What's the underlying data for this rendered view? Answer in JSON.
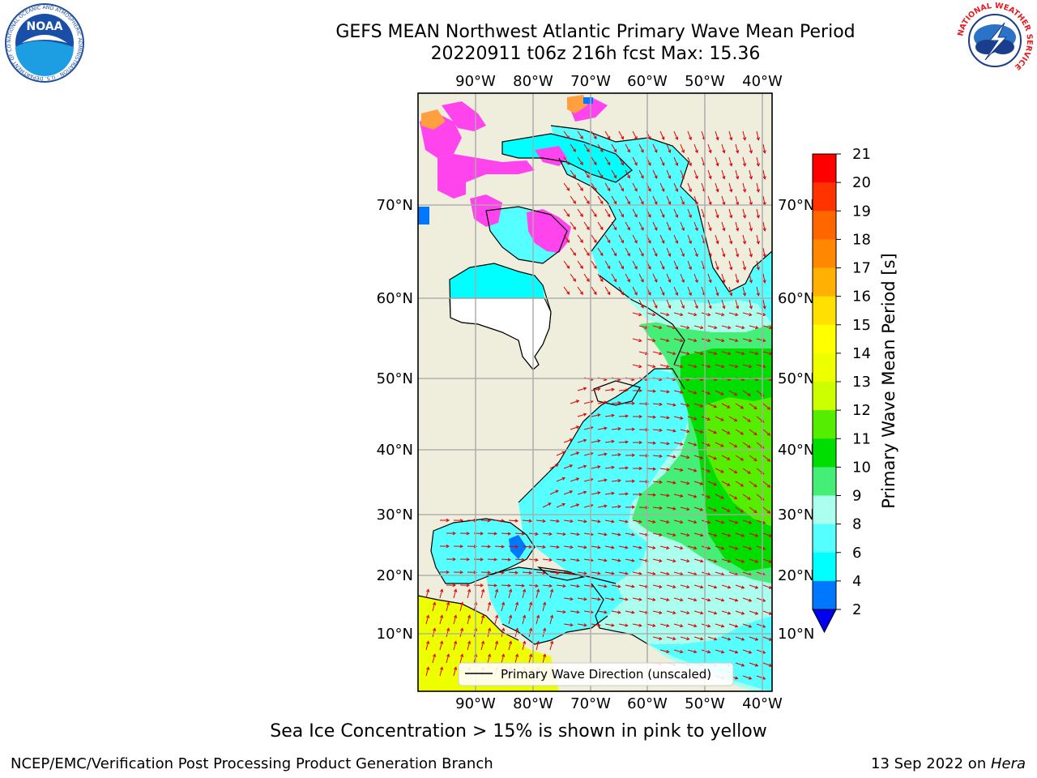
{
  "header": {
    "title_line1": "GEFS MEAN Northwest Atlantic Primary Wave Mean Period",
    "title_line2": "20220911 t06z 216h fcst   Max: 15.36"
  },
  "logos": {
    "noara_text": "NOAA",
    "noaa_ring": "NATIONAL OCEANIC AND ATMOSPHERIC ADMINISTRATION · U.S. DEPARTMENT OF COMMERCE",
    "nws_ring": "NATIONAL WEATHER SERVICE"
  },
  "map": {
    "lon_labels": [
      "90°W",
      "80°W",
      "70°W",
      "60°W",
      "50°W",
      "40°W"
    ],
    "lat_labels": [
      "70°N",
      "60°N",
      "50°N",
      "40°N",
      "30°N",
      "20°N",
      "10°N"
    ],
    "legend_label": "Primary Wave Direction (unscaled)",
    "colors": {
      "land": "#efeddc",
      "ice_pink": "#ff44ee",
      "ice_orange": "#ffa040",
      "arrows": "#e00000"
    }
  },
  "colorbar": {
    "label": "Primary Wave Mean Period [s]",
    "ticks": [
      "21",
      "20",
      "19",
      "18",
      "17",
      "16",
      "15",
      "14",
      "13",
      "12",
      "11",
      "10",
      "9",
      "8",
      "6",
      "4",
      "2"
    ],
    "colors": [
      "#ff0000",
      "#ff3300",
      "#ff6600",
      "#ff8800",
      "#ffb000",
      "#ffe000",
      "#ffff00",
      "#eeff00",
      "#ccff00",
      "#55ee00",
      "#00dd00",
      "#44ee77",
      "#aaffee",
      "#55ffff",
      "#00ffff",
      "#0077ff"
    ],
    "under_color": "#0000ee"
  },
  "footnote": "Sea Ice Concentration > 15% is shown in pink to yellow",
  "footer": {
    "left": "NCEP/EMC/Verification Post Processing Product Generation Branch",
    "right_date": "13 Sep 2022 on ",
    "right_host": "Hera"
  }
}
